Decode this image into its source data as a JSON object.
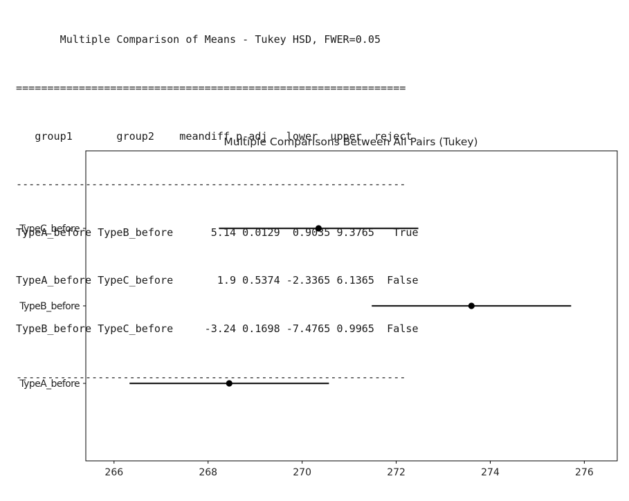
{
  "summary": {
    "title": "Multiple Comparison of Means - Tukey HSD, FWER=0.05",
    "rule_double": "==============================================================",
    "rule_single": "--------------------------------------------------------------",
    "columns": [
      "group1",
      "group2",
      "meandiff",
      "p-adj",
      "lower",
      "upper",
      "reject"
    ],
    "rows": [
      {
        "group1": "TypeA_before",
        "group2": "TypeB_before",
        "meandiff": "5.14",
        "padj": "0.0129",
        "lower": "0.9035",
        "upper": "9.3765",
        "reject": "True"
      },
      {
        "group1": "TypeA_before",
        "group2": "TypeC_before",
        "meandiff": "1.9",
        "padj": "0.5374",
        "lower": "-2.3365",
        "upper": "6.1365",
        "reject": "False"
      },
      {
        "group1": "TypeB_before",
        "group2": "TypeC_before",
        "meandiff": "-3.24",
        "padj": "0.1698",
        "lower": "-7.4765",
        "upper": "0.9965",
        "reject": "False"
      }
    ]
  },
  "chart_data": {
    "type": "scatter",
    "title": "Multiple Comparisons Between All Pairs (Tukey)",
    "xlabel": "",
    "ylabel": "",
    "xlim": [
      265.4,
      276.7
    ],
    "xticks": [
      266,
      268,
      270,
      272,
      274,
      276
    ],
    "grid": false,
    "categories": [
      "TypeA_before",
      "TypeB_before",
      "TypeC_before"
    ],
    "means": [
      268.45,
      273.6,
      270.35
    ],
    "lower": [
      266.33,
      271.48,
      268.23
    ],
    "upper": [
      270.57,
      275.72,
      272.47
    ],
    "colors": {
      "marker": "#000000",
      "errorbar": "#1f1f1f",
      "axis": "#000000"
    }
  }
}
